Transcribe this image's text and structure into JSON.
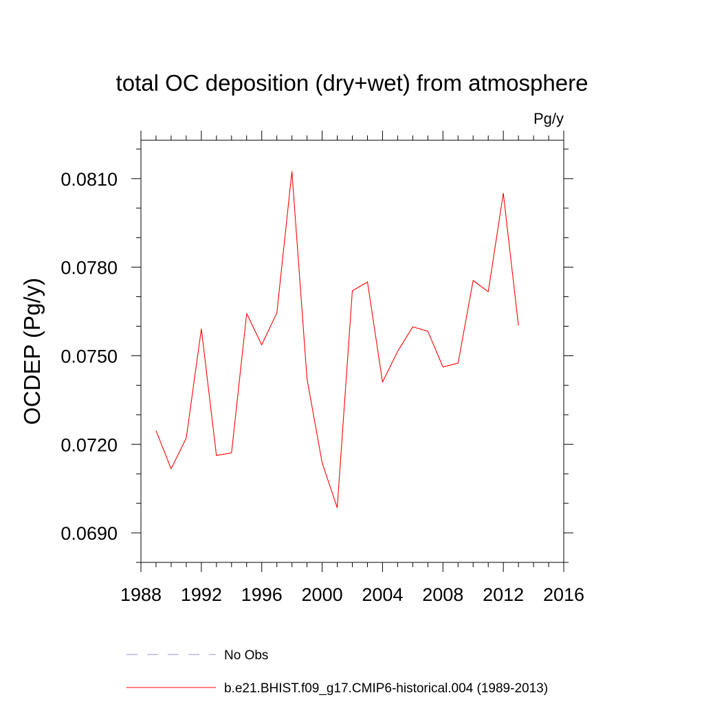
{
  "chart_data": {
    "type": "line",
    "title": "total OC deposition (dry+wet) from atmosphere",
    "units_label": "Pg/y",
    "ylabel": "OCDEP  (Pg/y)",
    "xlabel": "",
    "xlim": [
      1988,
      2016
    ],
    "ylim": [
      0.068,
      0.0823
    ],
    "xticks": [
      1988,
      1992,
      1996,
      2000,
      2004,
      2008,
      2012,
      2016
    ],
    "xtick_labels": [
      "1988",
      "1992",
      "1996",
      "2000",
      "2004",
      "2008",
      "2012",
      "2016"
    ],
    "yticks": [
      0.069,
      0.072,
      0.075,
      0.078,
      0.081
    ],
    "ytick_labels": [
      "0.0690",
      "0.0720",
      "0.0750",
      "0.0780",
      "0.0810"
    ],
    "grid": false,
    "legend_position": "bottom",
    "series": [
      {
        "name": "b.e21.BHIST.f09_g17.CMIP6-historical.004 (1989-2013)",
        "color": "#ff0000",
        "style": "solid",
        "x": [
          1989,
          1990,
          1991,
          1992,
          1993,
          1994,
          1995,
          1996,
          1997,
          1998,
          1999,
          2000,
          2001,
          2002,
          2003,
          2004,
          2005,
          2006,
          2007,
          2008,
          2009,
          2010,
          2011,
          2012,
          2013
        ],
        "y": [
          0.07246,
          0.07117,
          0.07221,
          0.07591,
          0.07162,
          0.07171,
          0.07643,
          0.07537,
          0.07645,
          0.08124,
          0.07421,
          0.07137,
          0.06985,
          0.0772,
          0.0775,
          0.07411,
          0.07515,
          0.07598,
          0.07583,
          0.07462,
          0.07475,
          0.07755,
          0.07717,
          0.08051,
          0.07602
        ]
      }
    ],
    "legend_entries": [
      {
        "label": "No Obs",
        "color": "#9b8fd0",
        "style": "dashed"
      },
      {
        "label": "b.e21.BHIST.f09_g17.CMIP6-historical.004 (1989-2013)",
        "color": "#ff0000",
        "style": "solid"
      }
    ]
  }
}
